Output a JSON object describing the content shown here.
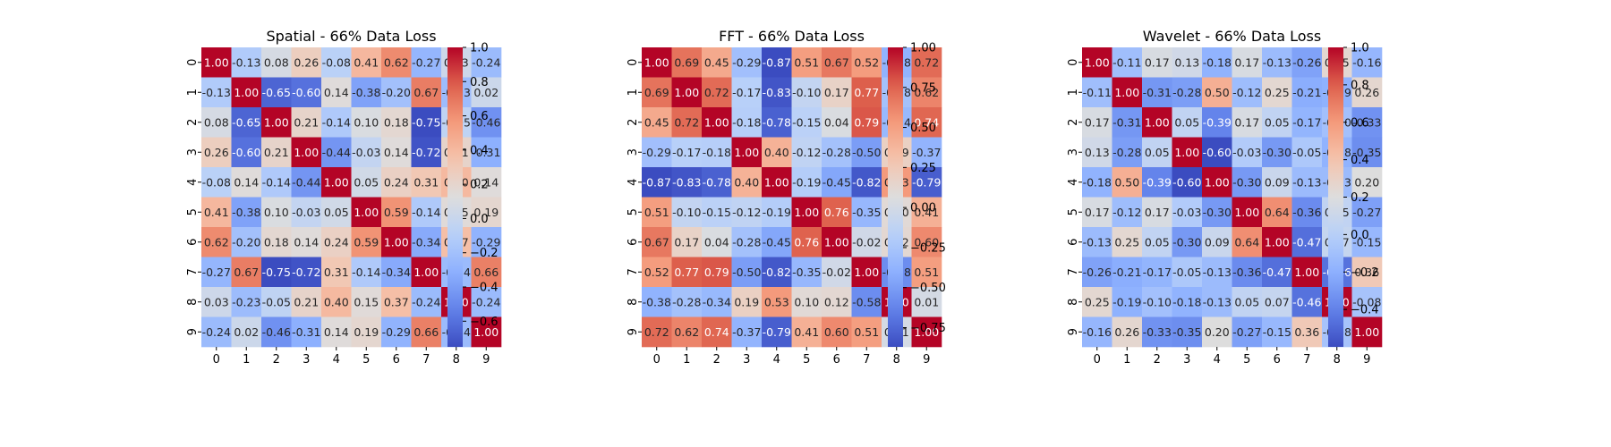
{
  "chart_data": [
    {
      "type": "heatmap",
      "title": "Spatial - 66% Data Loss",
      "x_ticks": [
        "0",
        "1",
        "2",
        "3",
        "4",
        "5",
        "6",
        "7",
        "8",
        "9"
      ],
      "y_ticks": [
        "0",
        "1",
        "2",
        "3",
        "4",
        "5",
        "6",
        "7",
        "8",
        "9"
      ],
      "colormap": "coolwarm",
      "vmin": -0.75,
      "vmax": 1.0,
      "colorbar_ticks": [
        "1.0",
        "0.8",
        "0.6",
        "0.4",
        "0.2",
        "0.0",
        "−0.2",
        "−0.4",
        "−0.6"
      ],
      "colorbar_values": [
        1.0,
        0.8,
        0.6,
        0.4,
        0.2,
        0.0,
        -0.2,
        -0.4,
        -0.6
      ],
      "values": [
        [
          1.0,
          -0.13,
          0.08,
          0.26,
          -0.08,
          0.41,
          0.62,
          -0.27,
          0.03,
          -0.24
        ],
        [
          -0.13,
          1.0,
          -0.65,
          -0.6,
          0.14,
          -0.38,
          -0.2,
          0.67,
          -0.23,
          0.02
        ],
        [
          0.08,
          -0.65,
          1.0,
          0.21,
          -0.14,
          0.1,
          0.18,
          -0.75,
          -0.05,
          -0.46
        ],
        [
          0.26,
          -0.6,
          0.21,
          1.0,
          -0.44,
          -0.03,
          0.14,
          -0.72,
          0.21,
          -0.31
        ],
        [
          -0.08,
          0.14,
          -0.14,
          -0.44,
          1.0,
          0.05,
          0.24,
          0.31,
          0.4,
          0.14
        ],
        [
          0.41,
          -0.38,
          0.1,
          -0.03,
          0.05,
          1.0,
          0.59,
          -0.14,
          0.15,
          0.19
        ],
        [
          0.62,
          -0.2,
          0.18,
          0.14,
          0.24,
          0.59,
          1.0,
          -0.34,
          0.37,
          -0.29
        ],
        [
          -0.27,
          0.67,
          -0.75,
          -0.72,
          0.31,
          -0.14,
          -0.34,
          1.0,
          -0.24,
          0.66
        ],
        [
          0.03,
          -0.23,
          -0.05,
          0.21,
          0.4,
          0.15,
          0.37,
          -0.24,
          1.0,
          -0.24
        ],
        [
          -0.24,
          0.02,
          -0.46,
          -0.31,
          0.14,
          0.19,
          -0.29,
          0.66,
          -0.24,
          1.0
        ]
      ]
    },
    {
      "type": "heatmap",
      "title": "FFT - 66% Data Loss",
      "x_ticks": [
        "0",
        "1",
        "2",
        "3",
        "4",
        "5",
        "6",
        "7",
        "8",
        "9"
      ],
      "y_ticks": [
        "0",
        "1",
        "2",
        "3",
        "4",
        "5",
        "6",
        "7",
        "8",
        "9"
      ],
      "colormap": "coolwarm",
      "vmin": -0.87,
      "vmax": 1.0,
      "colorbar_ticks": [
        "1.00",
        "0.75",
        "0.50",
        "0.25",
        "0.00",
        "−0.25",
        "−0.50",
        "−0.75"
      ],
      "colorbar_values": [
        1.0,
        0.75,
        0.5,
        0.25,
        0.0,
        -0.25,
        -0.5,
        -0.75
      ],
      "values": [
        [
          1.0,
          0.69,
          0.45,
          -0.29,
          -0.87,
          0.51,
          0.67,
          0.52,
          -0.38,
          0.72
        ],
        [
          0.69,
          1.0,
          0.72,
          -0.17,
          -0.83,
          -0.1,
          0.17,
          0.77,
          -0.28,
          0.62
        ],
        [
          0.45,
          0.72,
          1.0,
          -0.18,
          -0.78,
          -0.15,
          0.04,
          0.79,
          -0.34,
          0.74
        ],
        [
          -0.29,
          -0.17,
          -0.18,
          1.0,
          0.4,
          -0.12,
          -0.28,
          -0.5,
          0.19,
          -0.37
        ],
        [
          -0.87,
          -0.83,
          -0.78,
          0.4,
          1.0,
          -0.19,
          -0.45,
          -0.82,
          0.53,
          -0.79
        ],
        [
          0.51,
          -0.1,
          -0.15,
          -0.12,
          -0.19,
          1.0,
          0.76,
          -0.35,
          0.1,
          0.41
        ],
        [
          0.67,
          0.17,
          0.04,
          -0.28,
          -0.45,
          0.76,
          1.0,
          -0.02,
          0.12,
          0.6
        ],
        [
          0.52,
          0.77,
          0.79,
          -0.5,
          -0.82,
          -0.35,
          -0.02,
          1.0,
          -0.58,
          0.51
        ],
        [
          -0.38,
          -0.28,
          -0.34,
          0.19,
          0.53,
          0.1,
          0.12,
          -0.58,
          1.0,
          0.01
        ],
        [
          0.72,
          0.62,
          0.74,
          -0.37,
          -0.79,
          0.41,
          0.6,
          0.51,
          0.01,
          1.0
        ]
      ]
    },
    {
      "type": "heatmap",
      "title": "Wavelet - 66% Data Loss",
      "x_ticks": [
        "0",
        "1",
        "2",
        "3",
        "4",
        "5",
        "6",
        "7",
        "8",
        "9"
      ],
      "y_ticks": [
        "0",
        "1",
        "2",
        "3",
        "4",
        "5",
        "6",
        "7",
        "8",
        "9"
      ],
      "colormap": "coolwarm",
      "vmin": -0.6,
      "vmax": 1.0,
      "colorbar_ticks": [
        "1.0",
        "0.8",
        "0.6",
        "0.4",
        "0.2",
        "0.0",
        "−0.2",
        "−0.4"
      ],
      "colorbar_values": [
        1.0,
        0.8,
        0.6,
        0.4,
        0.2,
        0.0,
        -0.2,
        -0.4
      ],
      "values": [
        [
          1.0,
          -0.11,
          0.17,
          0.13,
          -0.18,
          0.17,
          -0.13,
          -0.26,
          0.25,
          -0.16
        ],
        [
          -0.11,
          1.0,
          -0.31,
          -0.28,
          0.5,
          -0.12,
          0.25,
          -0.21,
          -0.19,
          0.26
        ],
        [
          0.17,
          -0.31,
          1.0,
          0.05,
          -0.39,
          0.17,
          0.05,
          -0.17,
          -0.1,
          -0.33
        ],
        [
          0.13,
          -0.28,
          0.05,
          1.0,
          -0.6,
          -0.03,
          -0.3,
          -0.05,
          -0.18,
          -0.35
        ],
        [
          -0.18,
          0.5,
          -0.39,
          -0.6,
          1.0,
          -0.3,
          0.09,
          -0.13,
          -0.13,
          0.2
        ],
        [
          0.17,
          -0.12,
          0.17,
          -0.03,
          -0.3,
          1.0,
          0.64,
          -0.36,
          0.05,
          -0.27
        ],
        [
          -0.13,
          0.25,
          0.05,
          -0.3,
          0.09,
          0.64,
          1.0,
          -0.47,
          0.07,
          -0.15
        ],
        [
          -0.26,
          -0.21,
          -0.17,
          -0.05,
          -0.13,
          -0.36,
          -0.47,
          1.0,
          -0.46,
          0.36
        ],
        [
          0.25,
          -0.19,
          -0.1,
          -0.18,
          -0.13,
          0.05,
          0.07,
          -0.46,
          1.0,
          -0.08
        ],
        [
          -0.16,
          0.26,
          -0.33,
          -0.35,
          0.2,
          -0.27,
          -0.15,
          0.36,
          -0.08,
          1.0
        ]
      ]
    }
  ]
}
